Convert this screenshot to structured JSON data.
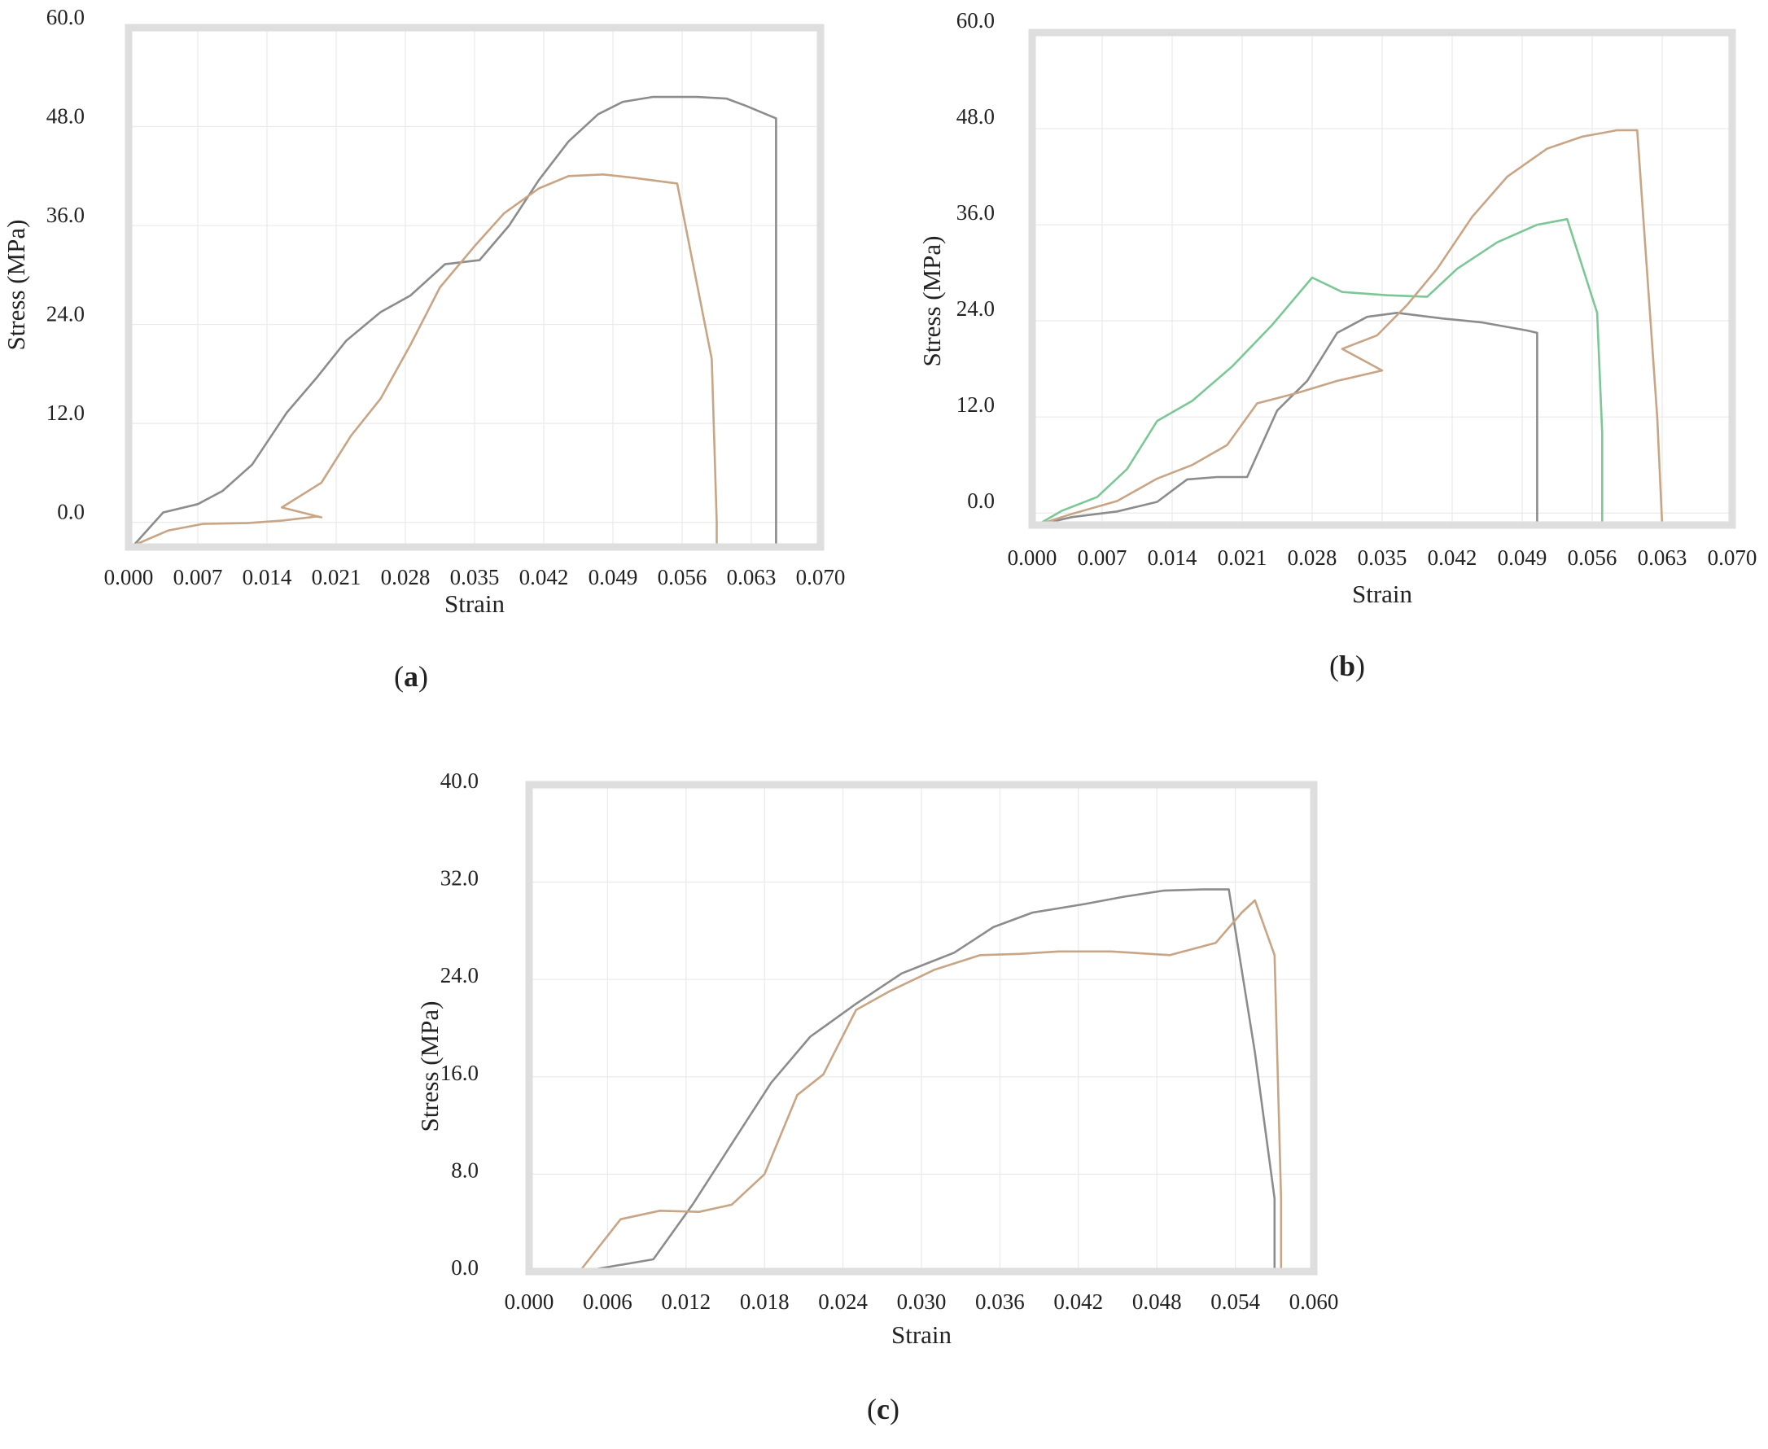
{
  "colors": {
    "frame": "#dedede",
    "grid": "#eaeaea",
    "series_gray": "#8c8c8c",
    "series_tan": "#c8a585",
    "series_green": "#7cc796"
  },
  "chart_data": [
    {
      "id": "a",
      "type": "line",
      "caption_label": "a",
      "xlabel": "Strain",
      "ylabel": "Stress (MPa)",
      "xlim": [
        0.0,
        0.07
      ],
      "ylim": [
        -3.0,
        60.0
      ],
      "x_ticks": [
        0.0,
        0.007,
        0.014,
        0.021,
        0.028,
        0.035,
        0.042,
        0.049,
        0.056,
        0.063,
        0.07
      ],
      "x_tick_labels": [
        "0.000",
        "0.007",
        "0.014",
        "0.021",
        "0.028",
        "0.035",
        "0.042",
        "0.049",
        "0.056",
        "0.063",
        "0.070"
      ],
      "y_ticks": [
        0.0,
        12.0,
        24.0,
        36.0,
        48.0,
        60.0
      ],
      "y_tick_labels": [
        "0.0",
        "12.0",
        "24.0",
        "36.0",
        "48.0",
        "60.0"
      ],
      "series": [
        {
          "name": "gray",
          "color": "#8c8c8c",
          "x": [
            0.0005,
            0.0035,
            0.007,
            0.0095,
            0.0125,
            0.016,
            0.019,
            0.022,
            0.0255,
            0.0285,
            0.032,
            0.0355,
            0.0385,
            0.0415,
            0.0445,
            0.0475,
            0.05,
            0.053,
            0.055,
            0.0575,
            0.0605,
            0.0625,
            0.0655,
            0.0655
          ],
          "y": [
            -2.8,
            1.2,
            2.2,
            3.8,
            7.0,
            13.3,
            17.5,
            22.0,
            25.5,
            27.5,
            31.3,
            31.8,
            36.0,
            41.5,
            46.2,
            49.5,
            51.0,
            51.6,
            51.6,
            51.6,
            51.4,
            50.5,
            49.0,
            -2.8
          ]
        },
        {
          "name": "tan",
          "color": "#c8a585",
          "x": [
            0.0005,
            0.004,
            0.0075,
            0.012,
            0.0155,
            0.019,
            0.0195,
            0.0155,
            0.0195,
            0.0225,
            0.0255,
            0.0285,
            0.0315,
            0.035,
            0.038,
            0.0415,
            0.0445,
            0.048,
            0.051,
            0.0555,
            0.059,
            0.0595,
            0.0595
          ],
          "y": [
            -2.8,
            -1.0,
            -0.2,
            -0.1,
            0.2,
            0.7,
            0.6,
            1.8,
            4.8,
            10.5,
            15.0,
            21.5,
            28.5,
            33.5,
            37.5,
            40.5,
            42.0,
            42.2,
            41.8,
            41.1,
            19.8,
            0.0,
            -2.8
          ]
        }
      ]
    },
    {
      "id": "b",
      "type": "line",
      "caption_label": "b",
      "xlabel": "Strain",
      "ylabel": "Stress (MPa)",
      "xlim": [
        0.0,
        0.07
      ],
      "ylim": [
        -1.5,
        60.0
      ],
      "x_ticks": [
        0.0,
        0.007,
        0.014,
        0.021,
        0.028,
        0.035,
        0.042,
        0.049,
        0.056,
        0.063,
        0.07
      ],
      "x_tick_labels": [
        "0.000",
        "0.007",
        "0.014",
        "0.021",
        "0.028",
        "0.035",
        "0.042",
        "0.049",
        "0.056",
        "0.063",
        "0.070"
      ],
      "y_ticks": [
        0.0,
        12.0,
        24.0,
        36.0,
        48.0,
        60.0
      ],
      "y_tick_labels": [
        "0.0",
        "12.0",
        "24.0",
        "36.0",
        "48.0",
        "60.0"
      ],
      "series": [
        {
          "name": "gray",
          "color": "#8c8c8c",
          "x": [
            0.0005,
            0.004,
            0.0085,
            0.0125,
            0.0155,
            0.0185,
            0.0215,
            0.0245,
            0.0275,
            0.0305,
            0.0335,
            0.0365,
            0.041,
            0.045,
            0.0495,
            0.0505,
            0.0505
          ],
          "y": [
            -1.5,
            -0.5,
            0.2,
            1.4,
            4.2,
            4.5,
            4.5,
            12.8,
            16.5,
            22.5,
            24.5,
            25.0,
            24.3,
            23.8,
            22.8,
            22.5,
            -1.5
          ]
        },
        {
          "name": "green",
          "color": "#7cc796",
          "x": [
            0.0005,
            0.003,
            0.0065,
            0.0095,
            0.0125,
            0.016,
            0.02,
            0.024,
            0.028,
            0.031,
            0.0355,
            0.0395,
            0.0425,
            0.0465,
            0.0505,
            0.0535,
            0.0565,
            0.057,
            0.057
          ],
          "y": [
            -1.5,
            0.3,
            2.0,
            5.5,
            11.5,
            14.0,
            18.3,
            23.5,
            29.4,
            27.6,
            27.2,
            27.0,
            30.5,
            33.8,
            36.0,
            36.7,
            25.0,
            10.0,
            -1.5
          ]
        },
        {
          "name": "tan",
          "color": "#c8a585",
          "x": [
            0.0005,
            0.004,
            0.0085,
            0.0125,
            0.016,
            0.0195,
            0.0225,
            0.0265,
            0.0305,
            0.035,
            0.031,
            0.0345,
            0.0375,
            0.0405,
            0.044,
            0.0475,
            0.0515,
            0.055,
            0.0585,
            0.0605,
            0.0625,
            0.063
          ],
          "y": [
            -1.5,
            -0.1,
            1.5,
            4.3,
            6.0,
            8.5,
            13.7,
            15.0,
            16.5,
            17.8,
            20.5,
            22.2,
            26.0,
            30.5,
            37.0,
            42.0,
            45.5,
            47.0,
            47.8,
            47.8,
            12.0,
            -1.5
          ]
        }
      ]
    },
    {
      "id": "c",
      "type": "line",
      "caption_label": "c",
      "xlabel": "Strain",
      "ylabel": "Stress (MPa)",
      "xlim": [
        0.0,
        0.06
      ],
      "ylim": [
        0.0,
        40.0
      ],
      "x_ticks": [
        0.0,
        0.006,
        0.012,
        0.018,
        0.024,
        0.03,
        0.036,
        0.042,
        0.048,
        0.054,
        0.06
      ],
      "x_tick_labels": [
        "0.000",
        "0.006",
        "0.012",
        "0.018",
        "0.024",
        "0.030",
        "0.036",
        "0.042",
        "0.048",
        "0.054",
        "0.060"
      ],
      "y_ticks": [
        0.0,
        8.0,
        16.0,
        24.0,
        32.0,
        40.0
      ],
      "y_tick_labels": [
        "0.0",
        "8.0",
        "16.0",
        "24.0",
        "32.0",
        "40.0"
      ],
      "series": [
        {
          "name": "gray",
          "color": "#8c8c8c",
          "x": [
            0.0015,
            0.004,
            0.0095,
            0.0125,
            0.0155,
            0.0185,
            0.0215,
            0.025,
            0.0285,
            0.0325,
            0.0355,
            0.0385,
            0.0425,
            0.0455,
            0.0485,
            0.0515,
            0.0535,
            0.0555,
            0.057,
            0.057
          ],
          "y": [
            0.0,
            0.0,
            1.0,
            5.5,
            10.5,
            15.5,
            19.3,
            22.0,
            24.5,
            26.2,
            28.3,
            29.5,
            30.2,
            30.8,
            31.3,
            31.4,
            31.4,
            18.0,
            6.0,
            0.0
          ]
        },
        {
          "name": "tan",
          "color": "#c8a585",
          "x": [
            0.0015,
            0.004,
            0.007,
            0.01,
            0.013,
            0.0155,
            0.018,
            0.0205,
            0.0225,
            0.025,
            0.0275,
            0.031,
            0.0345,
            0.0375,
            0.0405,
            0.0445,
            0.049,
            0.0525,
            0.0545,
            0.0555,
            0.057,
            0.0575,
            0.0575
          ],
          "y": [
            0.0,
            0.2,
            4.3,
            5.0,
            4.9,
            5.5,
            8.0,
            14.5,
            16.2,
            21.5,
            23.0,
            24.8,
            26.0,
            26.1,
            26.3,
            26.3,
            26.0,
            27.0,
            29.5,
            30.5,
            26.0,
            6.0,
            0.0
          ]
        }
      ]
    }
  ]
}
